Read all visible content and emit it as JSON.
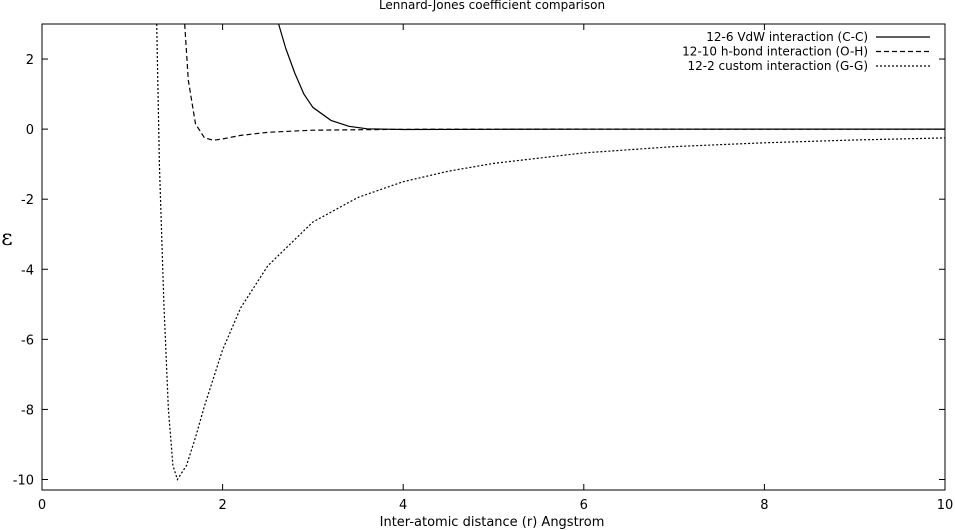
{
  "chart_data": {
    "type": "line",
    "title": "Lennard-Jones coefficient comparison",
    "xlabel": "Inter-atomic distance (r) Angstrom",
    "ylabel": "ε",
    "xlim": [
      0,
      10
    ],
    "ylim": [
      -10.3,
      3
    ],
    "xticks": [
      0,
      2,
      4,
      6,
      8,
      10
    ],
    "yticks": [
      2,
      0,
      -2,
      -4,
      -6,
      -8,
      -10
    ],
    "grid": false,
    "legend_position": "top-right",
    "series": [
      {
        "name": "12-6 VdW interaction (C-C)",
        "dash": "solid",
        "x": [
          2.62,
          2.7,
          2.8,
          2.9,
          3.0,
          3.2,
          3.4,
          3.6,
          4.0,
          5.0,
          6.0,
          8.0,
          10.0
        ],
        "y": [
          3.0,
          2.3,
          1.6,
          1.0,
          0.62,
          0.25,
          0.08,
          0.01,
          -0.01,
          -0.005,
          -0.003,
          -0.001,
          0.0
        ]
      },
      {
        "name": "12-10 h-bond interaction (O-H)",
        "dash": "dashed",
        "x": [
          1.58,
          1.62,
          1.7,
          1.8,
          1.9,
          2.0,
          2.2,
          2.5,
          3.0,
          4.0,
          5.0,
          6.0,
          8.0,
          10.0
        ],
        "y": [
          3.0,
          1.4,
          0.15,
          -0.25,
          -0.32,
          -0.28,
          -0.18,
          -0.09,
          -0.03,
          -0.005,
          -0.002,
          -0.001,
          0.0,
          0.0
        ]
      },
      {
        "name": "12-2 custom interaction (G-G)",
        "dash": "dotted",
        "x": [
          1.27,
          1.3,
          1.35,
          1.4,
          1.45,
          1.5,
          1.6,
          1.7,
          1.8,
          2.0,
          2.2,
          2.5,
          3.0,
          3.5,
          4.0,
          4.5,
          5.0,
          6.0,
          7.0,
          8.0,
          9.0,
          10.0
        ],
        "y": [
          3.0,
          -1.0,
          -5.0,
          -8.0,
          -9.6,
          -10.0,
          -9.6,
          -8.8,
          -7.9,
          -6.3,
          -5.1,
          -3.9,
          -2.65,
          -1.95,
          -1.5,
          -1.2,
          -0.98,
          -0.68,
          -0.5,
          -0.39,
          -0.31,
          -0.25
        ]
      }
    ]
  }
}
